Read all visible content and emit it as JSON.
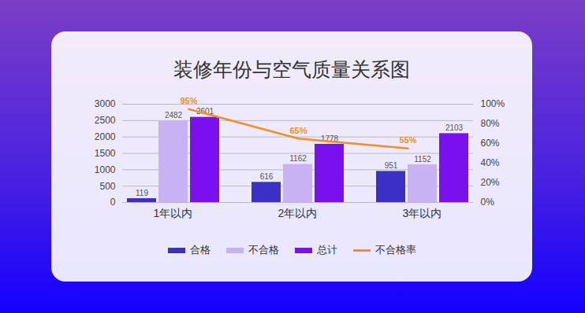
{
  "chart_data": {
    "type": "bar",
    "title": "装修年份与空气质量关系图",
    "categories": [
      "1年以内",
      "2年以内",
      "3年以内"
    ],
    "series": [
      {
        "name": "合格",
        "color": "#3b2fc6",
        "values": [
          119,
          616,
          951
        ]
      },
      {
        "name": "不合格",
        "color": "#c9b2f4",
        "values": [
          2482,
          1162,
          1152
        ]
      },
      {
        "name": "总计",
        "color": "#7a10ee",
        "values": [
          2601,
          1778,
          2103
        ]
      },
      {
        "name": "不合格率",
        "type": "line",
        "axis": "y2",
        "color": "#ef8f2c",
        "values": [
          95,
          65,
          55
        ],
        "value_labels": [
          "95%",
          "65%",
          "55%"
        ]
      }
    ],
    "ylim": [
      0,
      3000
    ],
    "yticks": [
      0,
      500,
      1000,
      1500,
      2000,
      2500,
      3000
    ],
    "y2lim": [
      0,
      100
    ],
    "y2ticks": [
      {
        "value": 0,
        "label": "0%"
      },
      {
        "value": 20,
        "label": "20%"
      },
      {
        "value": 40,
        "label": "40%"
      },
      {
        "value": 60,
        "label": "60%"
      },
      {
        "value": 80,
        "label": "80%"
      },
      {
        "value": 100,
        "label": "100%"
      }
    ],
    "grid": true,
    "data_labels": true,
    "legend": "bottom"
  }
}
